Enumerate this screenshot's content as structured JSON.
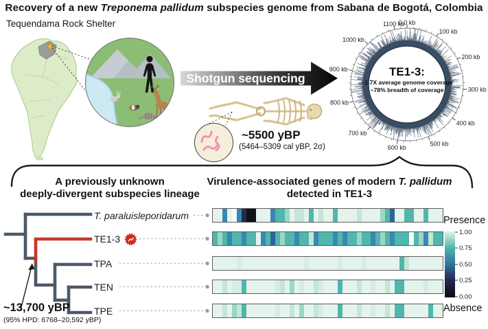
{
  "title": {
    "prefix": "Recovery of a new ",
    "italic": "Treponema pallidum",
    "suffix": " subspecies genome from Sabana de Bogotá, Colombia"
  },
  "map": {
    "site_label": "Tequendama Rock Shelter",
    "land_color": "#dcecc9",
    "region_color": "#9b9b9b",
    "marker_color": "#f0b429"
  },
  "scene": {
    "elements": [
      "mountains",
      "river",
      "human-silhouette",
      "rabbit",
      "guinea-pig",
      "armadillo",
      "deer"
    ]
  },
  "sequencing": {
    "arrow_label": "Shotgun sequencing",
    "age": "~5500 yBP",
    "age_detail": "(5464–5309 cal yBP, 2σ)"
  },
  "genome_plot": {
    "center_title": "TE1-3:",
    "coverage_line1": "~1.7X average genome coverage",
    "coverage_line2": "~78% breadth of coverage",
    "genome_length_kb": 1140,
    "tick_labels": [
      "0.0 kb",
      "100 kb",
      "200 kb",
      "300 kb",
      "400 kb",
      "500 kb",
      "600 kb",
      "700 kb",
      "800 kb",
      "900 kb",
      "1000 kb",
      "1100 kb"
    ],
    "ring_color": "#35475d"
  },
  "phylogeny": {
    "heading_line1": "A previously unknown",
    "heading_line2": "deeply-divergent subspecies lineage",
    "branch_color": "#4b5969",
    "highlight_color": "#c5392b",
    "badge": {
      "color": "#d6281c",
      "symbol": "spirochete"
    },
    "tips": [
      {
        "label": "T. paraluisleporidarum"
      },
      {
        "label": "TE1-3"
      },
      {
        "label": "TPA"
      },
      {
        "label": "TEN"
      },
      {
        "label": "TPE"
      }
    ],
    "divergence_age": "~13,700 yBP",
    "divergence_hpd": "(95% HPD: 6768–20,592 yBP)"
  },
  "heatmap": {
    "heading_prefix": "Virulence-associated genes of modern ",
    "heading_italic": "T. pallidum",
    "heading_line2": "detected in TE1-3",
    "palette": {
      ".": "#e4f3ec",
      "w": "#f4faf6",
      "f": "#d7ede2",
      "l": "#c4e6d8",
      "m": "#9bd6c6",
      "t": "#4fb7ab",
      "b": "#3c86b4",
      "B": "#2d639a",
      "n": "#232a52",
      "k": "#101018"
    },
    "rows": [
      {
        "tip": "T. paraluisleporidarum",
        "pattern": "..b.wbnkk...bttm.ll.t.l..t....l....mtB..tt..t..."
      },
      {
        "tip": "TE1-3",
        "pattern": "tmtbttbtt.btBtmttbttlbtttbtbttmttbtmtbtttwtmbltt"
      },
      {
        "tip": "TPA",
        "pattern": ".....f.............f......f....f.......tl......."
      },
      {
        "tip": "TEN",
        "pattern": "..l.fft......fl.m.f..lf...t...l..f..l.tt....f..."
      },
      {
        "tip": "TPE",
        "pattern": "..l.mlt......f..l.m..lf...t...l..f..l.tt.....t.."
      }
    ],
    "legend": {
      "top_label": "Presence",
      "bottom_label": "Absence",
      "ticks": [
        "1.00",
        "0.75",
        "0.50",
        "0.25",
        "0.00"
      ],
      "gradient": [
        "#dff3ea",
        "#4ab4a8",
        "#33719f",
        "#26254f",
        "#0c0c13"
      ]
    }
  },
  "chart_data": [
    {
      "type": "heatmap",
      "title": "Virulence-associated genes of modern T. pallidum detected in TE1-3",
      "rows": [
        "T. paraluisleporidarum",
        "TE1-3",
        "TPA",
        "TEN",
        "TPE"
      ],
      "value_scale": {
        "min": 0,
        "max": 1,
        "tick_labels": [
          "1.00",
          "0.75",
          "0.50",
          "0.25",
          "0.00"
        ],
        "max_label": "Presence",
        "min_label": "Absence"
      },
      "description": "Per-gene presence (1.0 = pale mint) to absence (0.0 = black); stripe color patterns per row are encoded in heatmap.rows[].pattern via heatmap.palette"
    },
    {
      "type": "circular-coverage-plot",
      "sample": "TE1-3",
      "average_genome_coverage": "~1.7X",
      "breadth_of_coverage": "~78%",
      "axis_tick_labels_kb": [
        0,
        100,
        200,
        300,
        400,
        500,
        600,
        700,
        800,
        900,
        1000,
        1100
      ],
      "genome_length_kb": 1140
    }
  ]
}
